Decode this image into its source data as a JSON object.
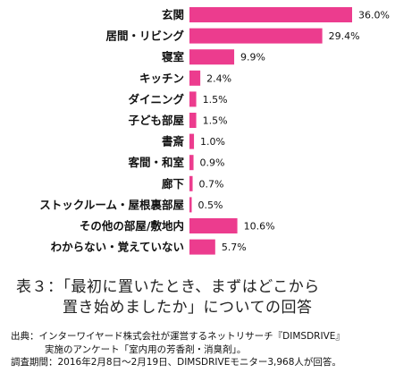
{
  "chart_data": {
    "type": "bar",
    "orientation": "horizontal",
    "categories": [
      "玄関",
      "居間・リビング",
      "寝室",
      "キッチン",
      "ダイニング",
      "子ども部屋",
      "書斎",
      "客間・和室",
      "廊下",
      "ストックルーム・屋根裏部屋",
      "その他の部屋/敷地内",
      "わからない・覚えていない"
    ],
    "values": [
      36.0,
      29.4,
      9.9,
      2.4,
      1.5,
      1.5,
      1.0,
      0.9,
      0.7,
      0.5,
      10.6,
      5.7
    ],
    "value_labels": [
      "36.0%",
      "29.4%",
      "9.9%",
      "2.4%",
      "1.5%",
      "1.5%",
      "1.0%",
      "0.9%",
      "0.7%",
      "0.5%",
      "10.6%",
      "5.7%"
    ],
    "xlim": [
      0,
      36.0
    ],
    "bar_color": "#EC3C8E",
    "grid": false,
    "axes_visible": false
  },
  "caption": {
    "line1": "表３：「最初に置いたとき、まずはどこから",
    "line2": "置き始めましたか」についての回答"
  },
  "source": {
    "line1": "出典：インターワイヤード株式会社が運営するネットリサーチ『DIMSDRIVE』",
    "line2": "実施のアンケート「室内用の芳香剤・消臭剤」。",
    "line3": "調査期間：2016年2月8日～2月19日、DIMSDRIVEモニター3,968人が回答。"
  }
}
